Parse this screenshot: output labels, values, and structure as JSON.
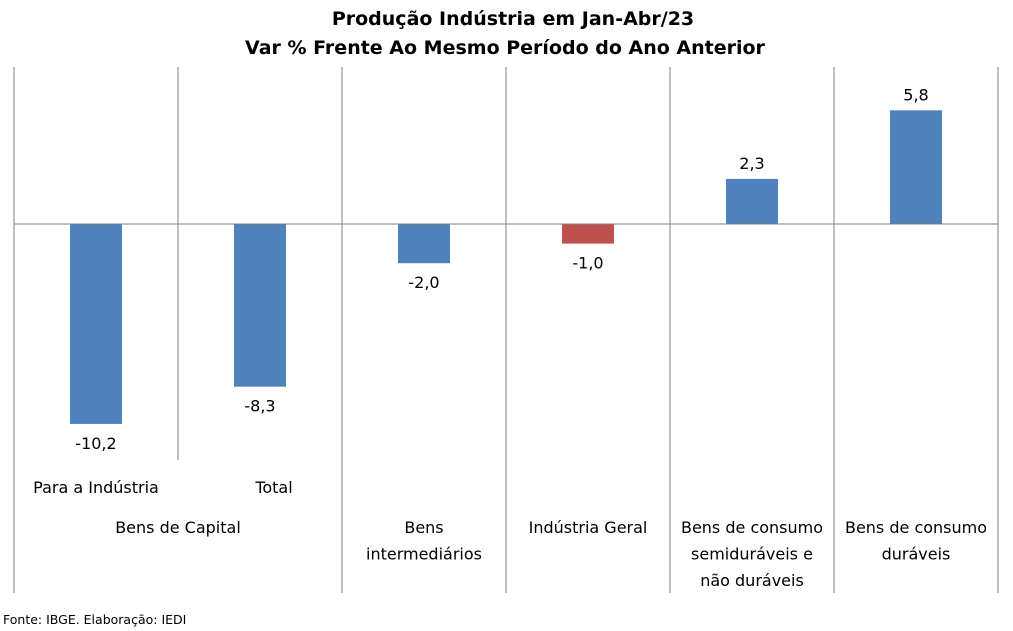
{
  "chart_data": {
    "type": "bar",
    "title": "Produção Indústria em Jan-Abr/23",
    "subtitle": "Var % Frente Ao Mesmo Período do Ano Anterior",
    "categories": [
      "Para a Indústria",
      "Total",
      "Bens intermediários",
      "Indústria Geral",
      "Bens de consumo semiduráveis e não duráveis",
      "Bens de consumo duráveis"
    ],
    "groups": [
      {
        "label": "Bens de Capital",
        "categories": [
          "Para a Indústria",
          "Total"
        ]
      },
      {
        "label": "Bens intermediários",
        "categories": [
          "Bens intermediários"
        ]
      },
      {
        "label": "Indústria Geral",
        "categories": [
          "Indústria Geral"
        ]
      },
      {
        "label": "Bens de consumo semiduráveis e não duráveis",
        "categories": [
          "Bens de consumo semiduráveis e não duráveis"
        ]
      },
      {
        "label": "Bens de consumo duráveis",
        "categories": [
          "Bens de consumo duráveis"
        ]
      }
    ],
    "values": [
      -10.2,
      -8.3,
      -2.0,
      -1.0,
      2.3,
      5.8
    ],
    "data_labels": [
      "-10,2",
      "-8,3",
      "-2,0",
      "-1,0",
      "2,3",
      "5,8"
    ],
    "colors": [
      "#4f81bd",
      "#4f81bd",
      "#4f81bd",
      "#c0504d",
      "#4f81bd",
      "#4f81bd"
    ],
    "xlabel": "",
    "ylabel": "",
    "ylim": [
      -12,
      8
    ],
    "grid": false,
    "legend": "none"
  },
  "source": "Fonte: IBGE. Elaboração: IEDI"
}
